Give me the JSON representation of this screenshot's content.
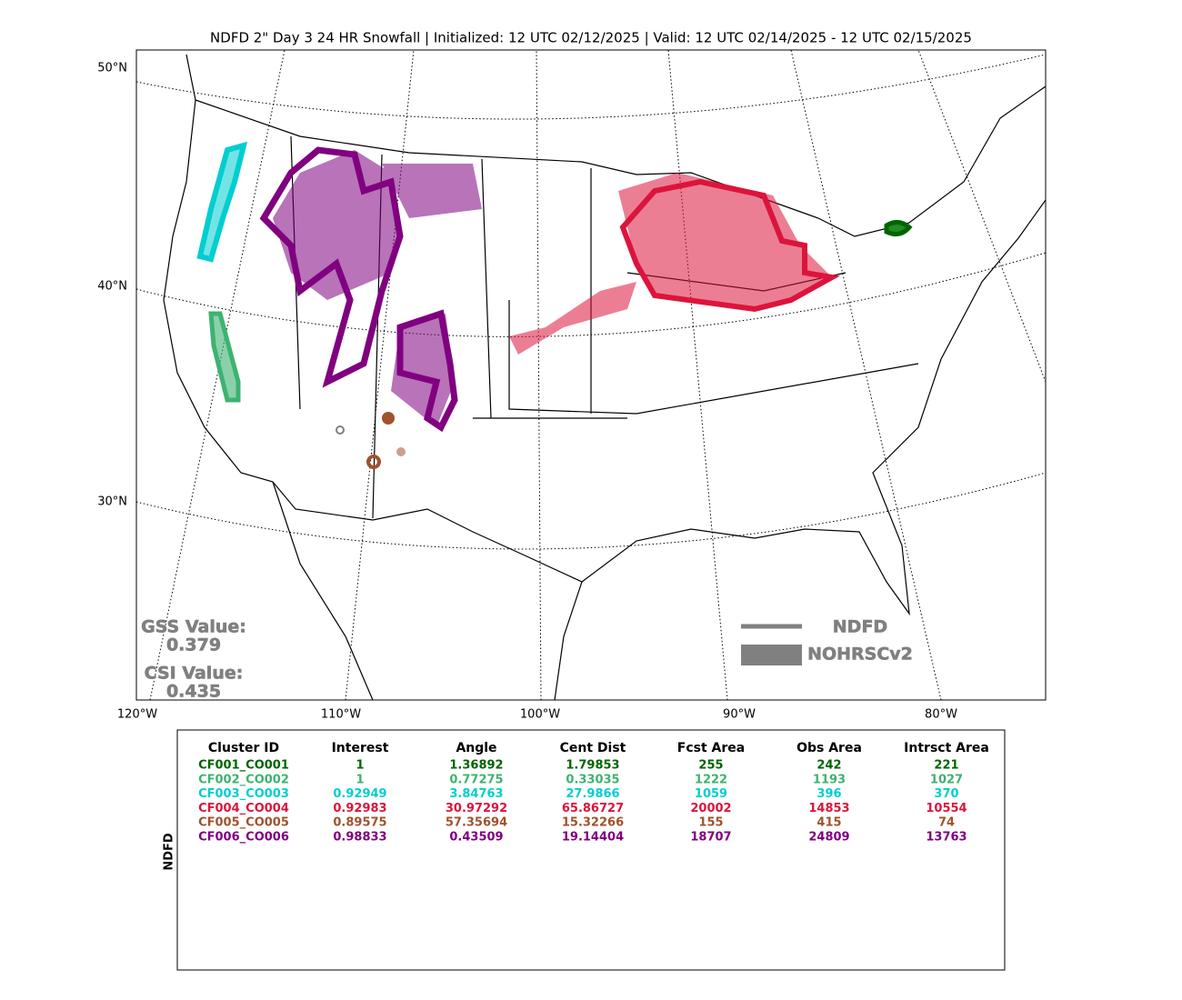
{
  "header": {
    "title": "NDFD 2\" Day 3 24 HR Snowfall | Initialized: 12 UTC 02/12/2025 | Valid: 12 UTC 02/14/2025 - 12 UTC 02/15/2025"
  },
  "map": {
    "lat_labels": [
      "50°N",
      "40°N",
      "30°N"
    ],
    "lon_labels": [
      "120°W",
      "110°W",
      "100°W",
      "90°W",
      "80°W"
    ]
  },
  "scores": {
    "gss_label": "GSS Value:",
    "gss_value": "0.379",
    "csi_label": "CSI Value:",
    "csi_value": "0.435",
    "color": "#808080"
  },
  "legend": {
    "items": [
      "NDFD",
      "NOHRSCv2"
    ],
    "color": "#808080"
  },
  "table": {
    "row_label": "NDFD",
    "columns": [
      "Cluster ID",
      "Interest",
      "Angle",
      "Cent Dist",
      "Fcst Area",
      "Obs Area",
      "Intrsct Area"
    ],
    "rows": [
      {
        "color": "#006400",
        "cells": [
          "CF001_CO001",
          "1",
          "1.36892",
          "1.79853",
          "255",
          "242",
          "221"
        ]
      },
      {
        "color": "#3cb371",
        "cells": [
          "CF002_CO002",
          "1",
          "0.77275",
          "0.33035",
          "1222",
          "1193",
          "1027"
        ]
      },
      {
        "color": "#00ced1",
        "cells": [
          "CF003_CO003",
          "0.92949",
          "3.84763",
          "27.9866",
          "1059",
          "396",
          "370"
        ]
      },
      {
        "color": "#dc143c",
        "cells": [
          "CF004_CO004",
          "0.92983",
          "30.97292",
          "65.86727",
          "20002",
          "14853",
          "10554"
        ]
      },
      {
        "color": "#a0522d",
        "cells": [
          "CF005_CO005",
          "0.89575",
          "57.35694",
          "15.32266",
          "155",
          "415",
          "74"
        ]
      },
      {
        "color": "#800080",
        "cells": [
          "CF006_CO006",
          "0.98833",
          "0.43509",
          "19.14404",
          "18707",
          "24809",
          "13763"
        ]
      }
    ]
  }
}
